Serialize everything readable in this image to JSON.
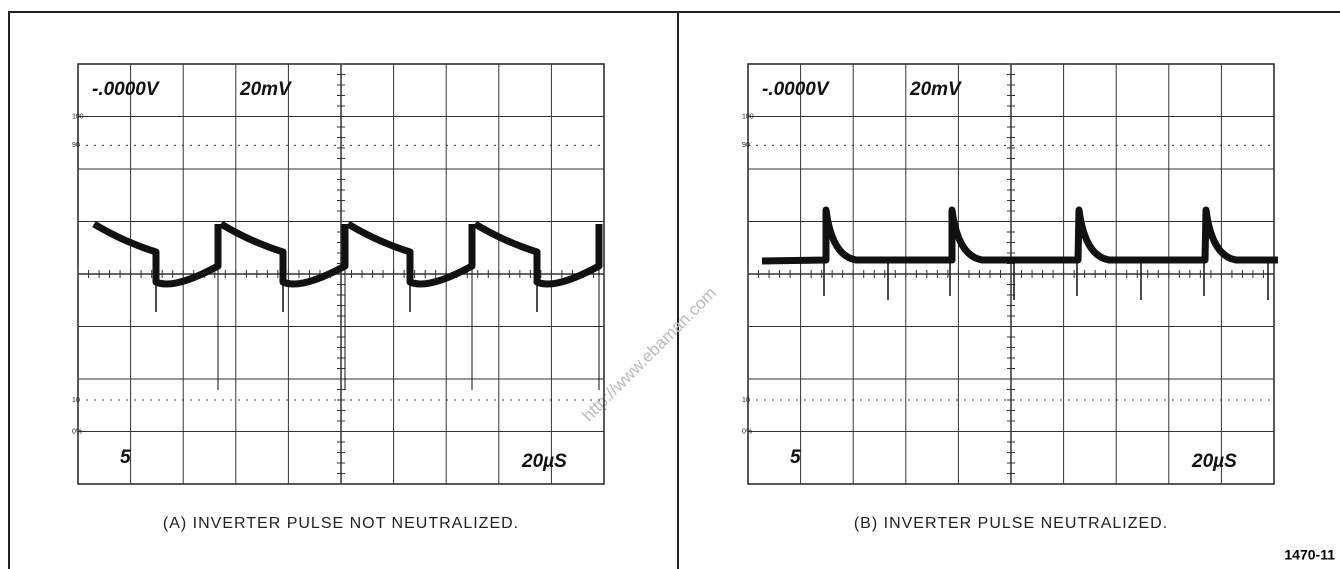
{
  "panels": [
    {
      "readout_left": "-.0000V",
      "readout_right": "20mV",
      "channel": "5",
      "timebase": "20µS",
      "scale_labels": [
        "100",
        "90",
        "10",
        "0%"
      ],
      "caption": "(A) INVERTER PULSE NOT NEUTRALIZED."
    },
    {
      "readout_left": "-.0000V",
      "readout_right": "20mV",
      "channel": "5",
      "timebase": "20µS",
      "scale_labels": [
        "100",
        "90",
        "10",
        "0%"
      ],
      "caption": "(B) INVERTER PULSE NEUTRALIZED."
    }
  ],
  "figure_number": "1470-11",
  "watermark": "http://www.ebaman.com"
}
